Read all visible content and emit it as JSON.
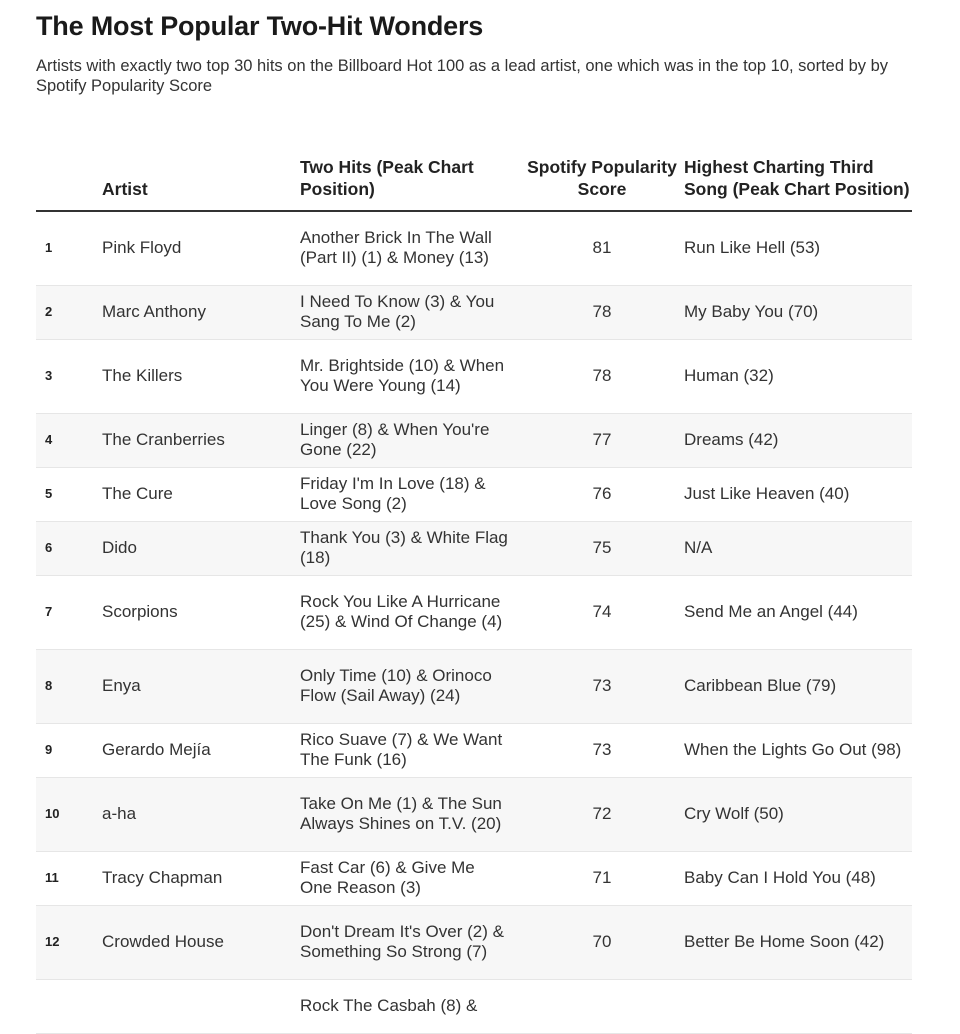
{
  "title": "The Most Popular Two-Hit Wonders",
  "subtitle": "Artists with exactly two top 30 hits on the Billboard Hot 100 as a lead artist, one which was in the top 10, sorted by by Spotify Popularity Score",
  "chart_data": {
    "type": "table",
    "columns": [
      "",
      "Artist",
      "Two Hits (Peak Chart Position)",
      "Spotify Popularity Score",
      "Highest Charting Third Song (Peak Chart Position)"
    ],
    "rows": [
      {
        "rank": "1",
        "artist": "Pink Floyd",
        "hits": "Another Brick In The Wall (Part II) (1) & Money (13)",
        "score": "81",
        "third": "Run Like Hell (53)"
      },
      {
        "rank": "2",
        "artist": "Marc Anthony",
        "hits": "I Need To Know (3) & You Sang To Me (2)",
        "score": "78",
        "third": "My Baby You (70)"
      },
      {
        "rank": "3",
        "artist": "The Killers",
        "hits": "Mr. Brightside (10) & When You Were Young (14)",
        "score": "78",
        "third": "Human (32)"
      },
      {
        "rank": "4",
        "artist": "The Cranberries",
        "hits": "Linger (8) & When You're Gone (22)",
        "score": "77",
        "third": "Dreams (42)"
      },
      {
        "rank": "5",
        "artist": "The Cure",
        "hits": "Friday I'm In Love (18) & Love Song (2)",
        "score": "76",
        "third": "Just Like Heaven (40)"
      },
      {
        "rank": "6",
        "artist": "Dido",
        "hits": "Thank You (3) & White Flag (18)",
        "score": "75",
        "third": "N/A"
      },
      {
        "rank": "7",
        "artist": "Scorpions",
        "hits": "Rock You Like A Hurricane (25) & Wind Of Change (4)",
        "score": "74",
        "third": "Send Me an Angel (44)"
      },
      {
        "rank": "8",
        "artist": "Enya",
        "hits": "Only Time (10) & Orinoco Flow (Sail Away) (24)",
        "score": "73",
        "third": "Caribbean Blue (79)"
      },
      {
        "rank": "9",
        "artist": "Gerardo Mejía",
        "hits": "Rico Suave (7) & We Want The Funk (16)",
        "score": "73",
        "third": "When the Lights Go Out (98)"
      },
      {
        "rank": "10",
        "artist": "a-ha",
        "hits": "Take On Me (1) & The Sun Always Shines on T.V. (20)",
        "score": "72",
        "third": "Cry Wolf (50)"
      },
      {
        "rank": "11",
        "artist": "Tracy Chapman",
        "hits": "Fast Car (6) & Give Me One Reason (3)",
        "score": "71",
        "third": "Baby Can I Hold You (48)"
      },
      {
        "rank": "12",
        "artist": "Crowded House",
        "hits": "Don't Dream It's Over (2) & Something So Strong (7)",
        "score": "70",
        "third": "Better Be Home Soon (42)"
      },
      {
        "rank": "",
        "artist": "",
        "hits": "Rock The Casbah (8) &",
        "score": "",
        "third": ""
      }
    ]
  }
}
